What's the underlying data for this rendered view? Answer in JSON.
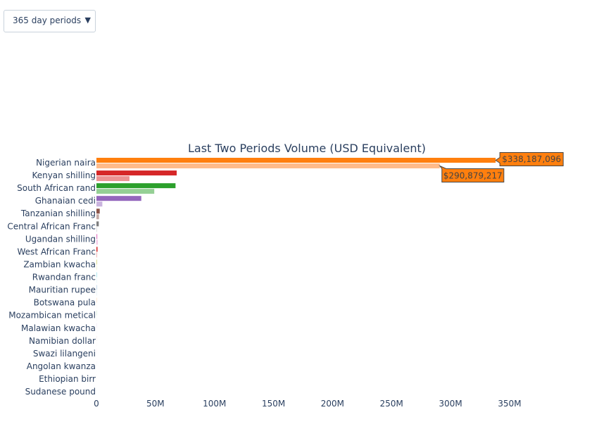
{
  "controls": {
    "period_select": {
      "selected": "365 day periods"
    }
  },
  "icons": {
    "dropdown_arrow": "▼"
  },
  "chart_data": {
    "type": "bar",
    "orientation": "horizontal",
    "title": "Last Two Periods Volume (USD Equivalent)",
    "xlabel": "",
    "ylabel": "",
    "xlim": [
      0,
      390000000
    ],
    "x_ticks": [
      0,
      50000000,
      100000000,
      150000000,
      200000000,
      250000000,
      300000000,
      350000000
    ],
    "x_tick_labels": [
      "0",
      "50M",
      "100M",
      "150M",
      "200M",
      "250M",
      "300M",
      "350M"
    ],
    "grid": false,
    "categories": [
      "Nigerian naira",
      "Kenyan shilling",
      "South African rand",
      "Ghanaian cedi",
      "Tanzanian shilling",
      "Central African Franc",
      "Ugandan shilling",
      "West African Franc",
      "Zambian kwacha",
      "Rwandan franc",
      "Mauritian rupee",
      "Botswana pula",
      "Mozambican metical",
      "Malawian kwacha",
      "Namibian dollar",
      "Swazi lilangeni",
      "Angolan kwanza",
      "Ethiopian birr",
      "Sudanese pound"
    ],
    "bars": [
      {
        "latest": 338187096,
        "previous": 290879217,
        "color": "#ff7f0e",
        "prev_color": "#ffbb8a"
      },
      {
        "latest": 68000000,
        "previous": 28000000,
        "color": "#d62728",
        "prev_color": "#ec9393"
      },
      {
        "latest": 67000000,
        "previous": 49000000,
        "color": "#2ca02c",
        "prev_color": "#95d095"
      },
      {
        "latest": 38000000,
        "previous": 5000000,
        "color": "#9467bd",
        "prev_color": "#c9b3de"
      },
      {
        "latest": 2800000,
        "previous": 2200000,
        "color": "#8c564b",
        "prev_color": "#c5aaa5"
      },
      {
        "latest": 2000000,
        "previous": 300000,
        "color": "#7f7f7f",
        "prev_color": "#bfbfbf"
      },
      {
        "latest": 700000,
        "previous": 1000000,
        "color": "#e377c2",
        "prev_color": "#f1bbe0"
      },
      {
        "latest": 900000,
        "previous": 400000,
        "color": "#d62728",
        "prev_color": "#ec9393"
      },
      {
        "latest": 300000,
        "previous": 200000,
        "color": "#bcbd22",
        "prev_color": "#dddd90"
      },
      {
        "latest": 200000,
        "previous": 100000,
        "color": "#17becf",
        "prev_color": "#8bdee7"
      },
      {
        "latest": 150000,
        "previous": 100000,
        "color": "#1f77b4",
        "prev_color": "#8fbbd9"
      },
      {
        "latest": 100000,
        "previous": 50000,
        "color": "#ff7f0e",
        "prev_color": "#ffbb8a"
      },
      {
        "latest": 80000,
        "previous": 40000,
        "color": "#2ca02c",
        "prev_color": "#95d095"
      },
      {
        "latest": 60000,
        "previous": 30000,
        "color": "#9467bd",
        "prev_color": "#c9b3de"
      },
      {
        "latest": 40000,
        "previous": 20000,
        "color": "#8c564b",
        "prev_color": "#c5aaa5"
      },
      {
        "latest": 30000,
        "previous": 15000,
        "color": "#e377c2",
        "prev_color": "#f1bbe0"
      },
      {
        "latest": 20000,
        "previous": 10000,
        "color": "#7f7f7f",
        "prev_color": "#bfbfbf"
      },
      {
        "latest": 15000,
        "previous": 8000,
        "color": "#bcbd22",
        "prev_color": "#dddd90"
      },
      {
        "latest": 10000,
        "previous": 5000,
        "color": "#17becf",
        "prev_color": "#8bdee7"
      }
    ],
    "annotations": [
      {
        "category": "Nigerian naira",
        "series": "latest",
        "text": "$338,187,096",
        "color": "#ff7f0e"
      },
      {
        "category": "Nigerian naira",
        "series": "previous",
        "text": "$290,879,217",
        "color": "#ff7f0e"
      }
    ]
  }
}
